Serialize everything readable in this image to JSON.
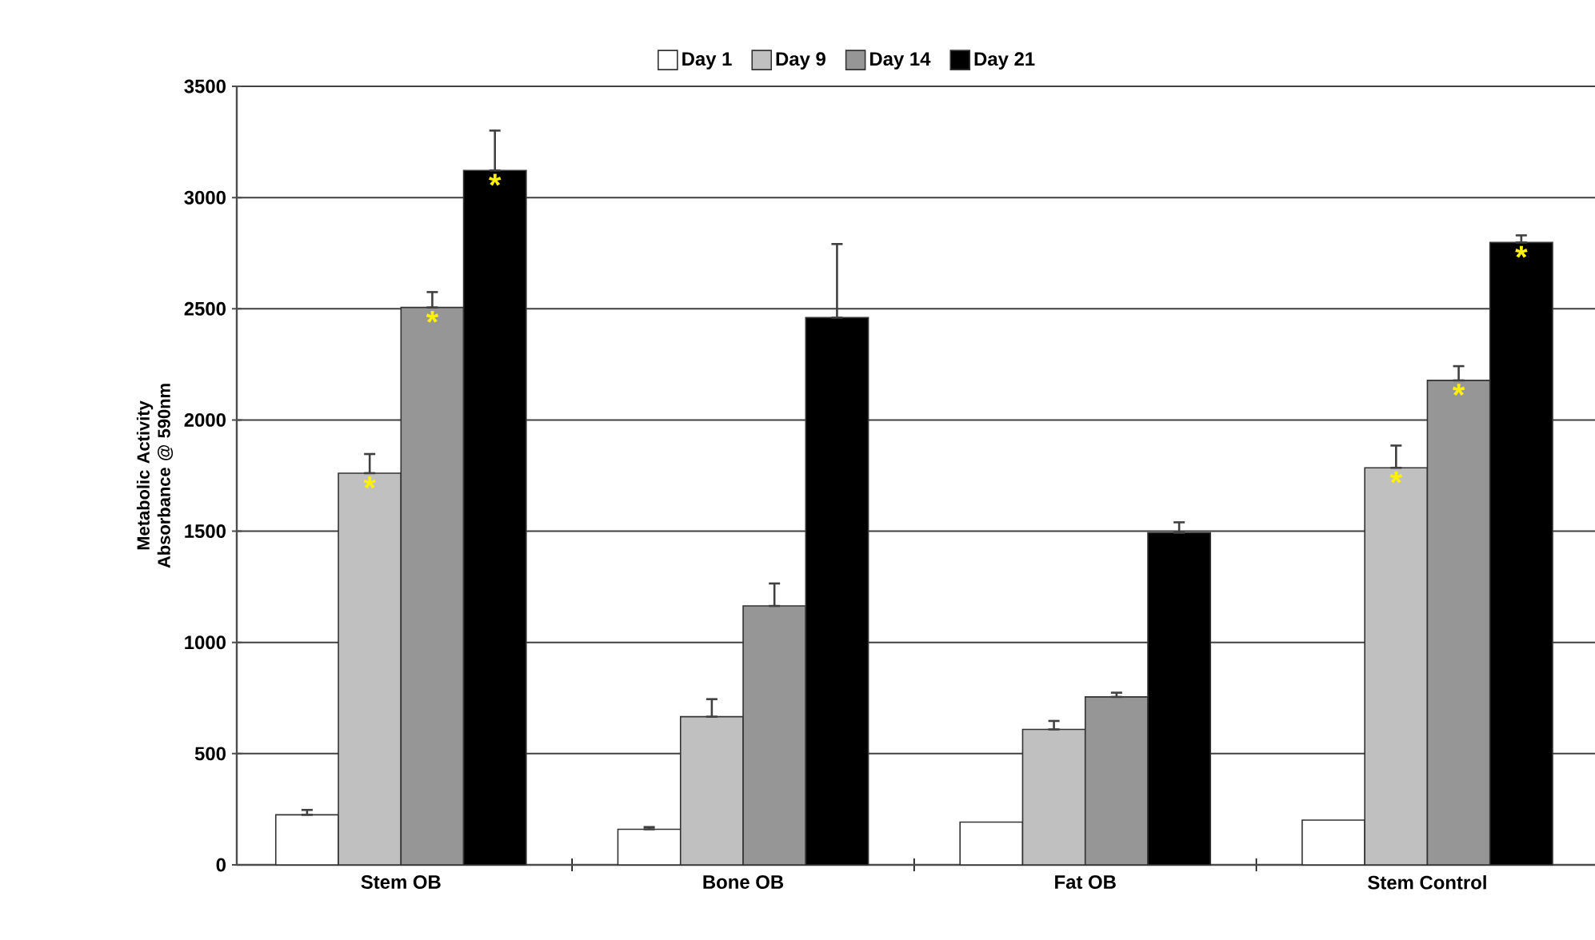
{
  "chart_data": {
    "type": "bar",
    "ylabel": "Metabolic Activity Absorbance @ 590nm",
    "categories": [
      "Stem OB",
      "Bone OB",
      "Fat OB",
      "Stem Control"
    ],
    "series": [
      {
        "name": "Day 1",
        "color": "#ffffff",
        "values": [
          225,
          160,
          192,
          201
        ],
        "errors": [
          [
            225,
            247
          ],
          [
            160,
            170
          ],
          null,
          null
        ]
      },
      {
        "name": "Day 9",
        "color": "#c0c0c0",
        "values": [
          1761,
          666,
          609,
          1785
        ],
        "errors": [
          [
            1761,
            1847
          ],
          [
            666,
            745
          ],
          [
            609,
            647
          ],
          [
            1785,
            1885
          ]
        ],
        "value_labels": [
          "*",
          null,
          null,
          "*"
        ]
      },
      {
        "name": "Day 14",
        "color": "#969696",
        "values": [
          2506,
          1164,
          755,
          2178
        ],
        "errors": [
          [
            2506,
            2575
          ],
          [
            1164,
            1265
          ],
          [
            755,
            774
          ],
          [
            2178,
            2242
          ]
        ],
        "value_labels": [
          "*",
          null,
          null,
          "*"
        ]
      },
      {
        "name": "Day 21",
        "color": "#000000",
        "values": [
          3122,
          2460,
          1493,
          2798
        ],
        "errors": [
          [
            3122,
            3301
          ],
          [
            2460,
            2791
          ],
          [
            1493,
            1540
          ],
          [
            2798,
            2830
          ]
        ],
        "value_labels": [
          "*",
          null,
          null,
          "*"
        ]
      }
    ],
    "ylim": [
      0,
      3500
    ],
    "yticks": [
      0,
      500,
      1000,
      1500,
      2000,
      2500,
      3000,
      3500
    ],
    "grid": "y",
    "legend": "top"
  }
}
